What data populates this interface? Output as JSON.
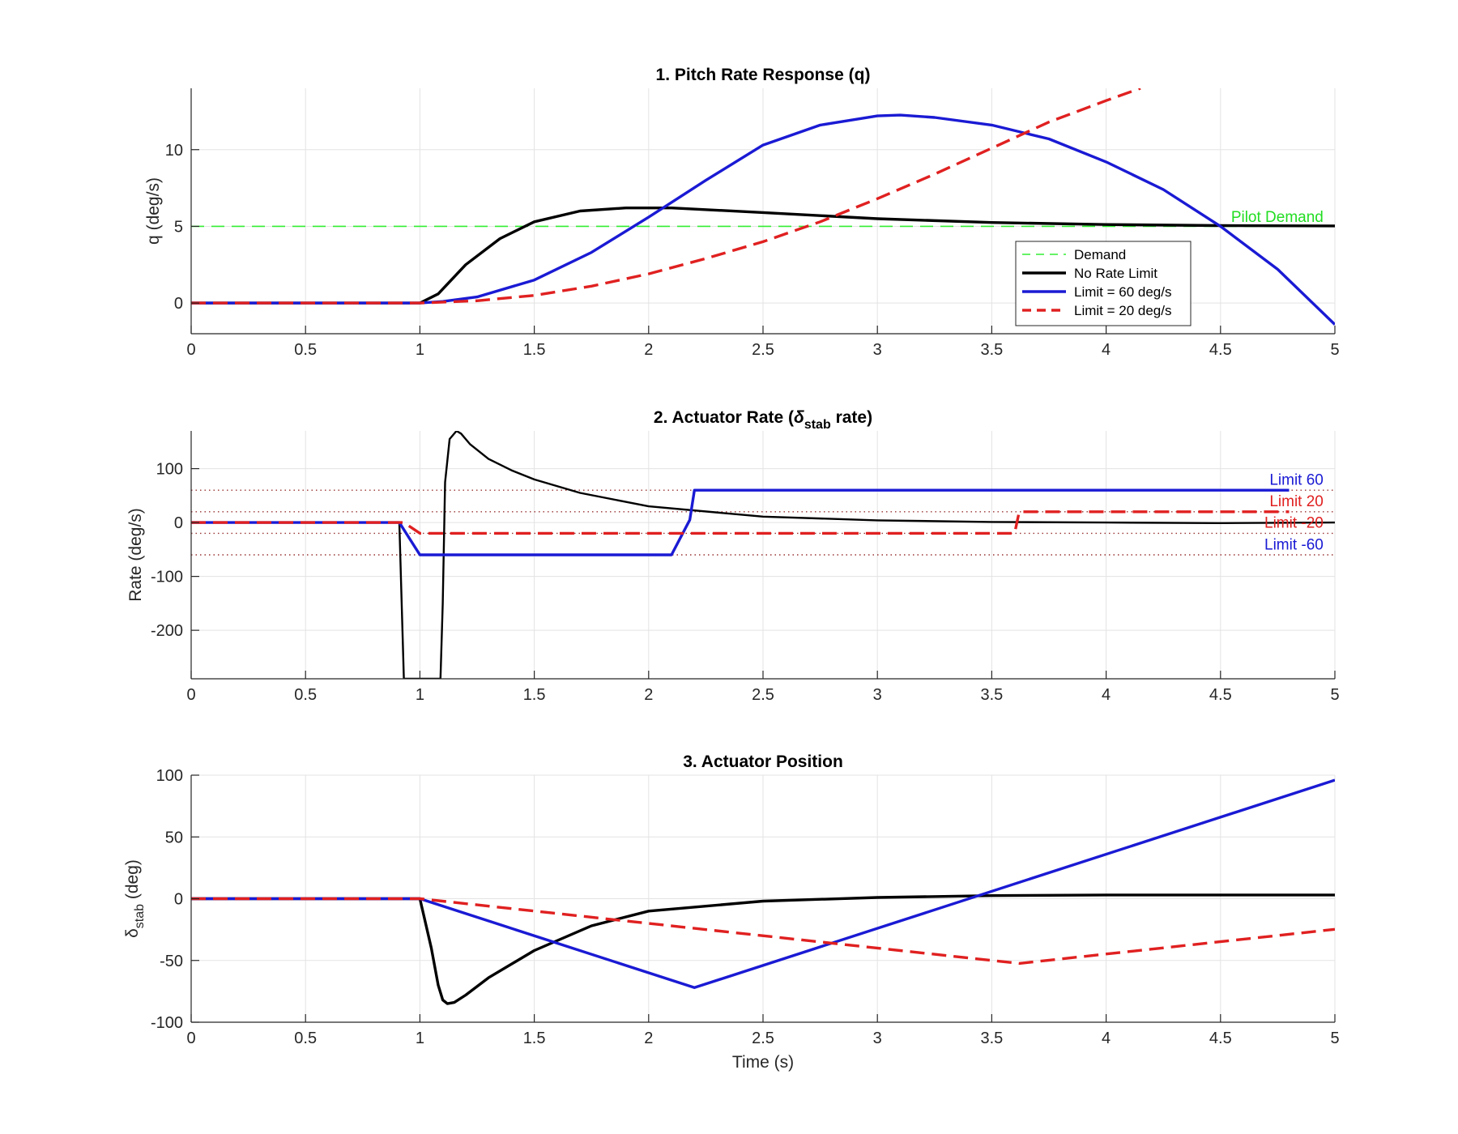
{
  "figure": {
    "background": "#ffffff"
  },
  "chart_data": [
    {
      "type": "line",
      "title": "1. Pitch Rate Response (q)",
      "xlabel": "",
      "ylabel": "q (deg/s)",
      "xlim": [
        0,
        5
      ],
      "ylim": [
        -2,
        14
      ],
      "xticks": [
        "0",
        "0.5",
        "1",
        "1.5",
        "2",
        "2.5",
        "3",
        "3.5",
        "4",
        "4.5",
        "5"
      ],
      "yticks": [
        "0",
        "5",
        "10"
      ],
      "grid": true,
      "legend": {
        "position": "inside-right",
        "entries": [
          "Demand",
          "No Rate Limit",
          "Limit = 60 deg/s",
          "Limit = 20 deg/s"
        ]
      },
      "annotations": [
        {
          "text": "Pilot Demand",
          "x": 4.95,
          "y": 5.3,
          "color": "#22dd22"
        }
      ],
      "series": [
        {
          "name": "Demand",
          "color": "#33ee33",
          "style": "dashed-thin",
          "x": [
            0,
            5
          ],
          "y": [
            5,
            5
          ]
        },
        {
          "name": "No Rate Limit",
          "color": "#000000",
          "style": "solid",
          "x": [
            0,
            1,
            1.08,
            1.2,
            1.35,
            1.5,
            1.7,
            1.9,
            2.1,
            2.5,
            3,
            3.5,
            4,
            4.5,
            5
          ],
          "y": [
            0,
            0,
            0.6,
            2.5,
            4.2,
            5.3,
            6.0,
            6.2,
            6.2,
            5.9,
            5.5,
            5.25,
            5.12,
            5.05,
            5.03
          ]
        },
        {
          "name": "Limit = 60 deg/s",
          "color": "#1a1ad4",
          "style": "solid",
          "x": [
            0,
            1,
            1.1,
            1.25,
            1.5,
            1.75,
            2,
            2.25,
            2.5,
            2.75,
            3,
            3.1,
            3.25,
            3.5,
            3.75,
            4,
            4.25,
            4.5,
            4.75,
            5
          ],
          "y": [
            0,
            0,
            0.1,
            0.4,
            1.5,
            3.3,
            5.6,
            8.0,
            10.3,
            11.6,
            12.2,
            12.25,
            12.1,
            11.6,
            10.7,
            9.2,
            7.4,
            5.0,
            2.2,
            -1.4
          ]
        },
        {
          "name": "Limit = 20 deg/s",
          "color": "#e02020",
          "style": "dashed",
          "x": [
            0,
            1,
            1.25,
            1.5,
            1.75,
            2,
            2.25,
            2.5,
            2.75,
            3,
            3.25,
            3.5,
            3.75,
            4,
            4.15
          ],
          "y": [
            0,
            0,
            0.15,
            0.5,
            1.1,
            1.9,
            2.9,
            4.0,
            5.3,
            6.8,
            8.4,
            10.1,
            11.8,
            13.2,
            14
          ]
        }
      ]
    },
    {
      "type": "line",
      "title": "2. Actuator Rate (",
      "title_symbol": "δ",
      "title_subscript": "stab",
      "title_suffix": " rate)",
      "xlabel": "",
      "ylabel": "Rate (deg/s)",
      "xlim": [
        0,
        5
      ],
      "ylim": [
        -290,
        170
      ],
      "xticks": [
        "0",
        "0.5",
        "1",
        "1.5",
        "2",
        "2.5",
        "3",
        "3.5",
        "4",
        "4.5",
        "5"
      ],
      "yticks": [
        "-200",
        "-100",
        "0",
        "100"
      ],
      "grid": true,
      "reference_lines": [
        {
          "y": 60,
          "color": "#993333",
          "style": "dotted"
        },
        {
          "y": 20,
          "color": "#993333",
          "style": "dotted"
        },
        {
          "y": -20,
          "color": "#993333",
          "style": "dotted"
        },
        {
          "y": -60,
          "color": "#993333",
          "style": "dotted"
        }
      ],
      "annotations": [
        {
          "text": "Limit 60",
          "x": 4.95,
          "y": 70,
          "color": "#1a1ad4"
        },
        {
          "text": "Limit 20",
          "x": 4.95,
          "y": 30,
          "color": "#e02020"
        },
        {
          "text": "Limit -20",
          "x": 4.95,
          "y": -10,
          "color": "#e02020"
        },
        {
          "text": "Limit -60",
          "x": 4.95,
          "y": -50,
          "color": "#1a1ad4"
        }
      ],
      "series": [
        {
          "name": "",
          "color": "#000000",
          "style": "solid-thin",
          "x": [
            0,
            0.91,
            0.93,
            1.09,
            1.1,
            1.11,
            1.13,
            1.16,
            1.18,
            1.22,
            1.3,
            1.4,
            1.5,
            1.7,
            2,
            2.5,
            3,
            3.5,
            4,
            4.5,
            5
          ],
          "y": [
            0,
            0,
            -290,
            -290,
            -150,
            75,
            155,
            170,
            165,
            145,
            118,
            97,
            80,
            55,
            30,
            11,
            4,
            1,
            0,
            -1,
            0
          ]
        },
        {
          "name": "",
          "color": "#1a1ad4",
          "style": "solid",
          "x": [
            0,
            0.91,
            1.0,
            2.1,
            2.18,
            2.2,
            4.8
          ],
          "y": [
            0,
            0,
            -60,
            -60,
            5,
            60,
            60
          ]
        },
        {
          "name": "",
          "color": "#e02020",
          "style": "dashed",
          "x": [
            0,
            0.93,
            1.0,
            3.6,
            3.62,
            4.8
          ],
          "y": [
            0,
            0,
            -20,
            -20,
            20,
            20
          ]
        }
      ]
    },
    {
      "type": "line",
      "title": "3. Actuator Position",
      "xlabel": "Time (s)",
      "ylabel": "(deg)",
      "ylabel_symbol": "δ",
      "ylabel_subscript": "stab",
      "xlim": [
        0,
        5
      ],
      "ylim": [
        -100,
        100
      ],
      "xticks": [
        "0",
        "0.5",
        "1",
        "1.5",
        "2",
        "2.5",
        "3",
        "3.5",
        "4",
        "4.5",
        "5"
      ],
      "yticks": [
        "-100",
        "-50",
        "0",
        "50",
        "100"
      ],
      "grid": true,
      "series": [
        {
          "name": "",
          "color": "#000000",
          "style": "solid",
          "x": [
            0,
            1,
            1.05,
            1.08,
            1.1,
            1.12,
            1.15,
            1.2,
            1.3,
            1.5,
            1.75,
            2,
            2.5,
            3,
            3.5,
            4,
            4.5,
            5
          ],
          "y": [
            0,
            0,
            -40,
            -70,
            -82,
            -85,
            -84,
            -78,
            -64,
            -42,
            -22,
            -10,
            -2,
            1,
            2.5,
            3,
            3,
            3
          ]
        },
        {
          "name": "",
          "color": "#1a1ad4",
          "style": "solid",
          "x": [
            0,
            1,
            2.2,
            5
          ],
          "y": [
            0,
            0,
            -72,
            96
          ]
        },
        {
          "name": "",
          "color": "#e02020",
          "style": "dashed",
          "x": [
            0,
            1,
            3.62,
            5
          ],
          "y": [
            0,
            0,
            -52.4,
            -24.8
          ]
        }
      ]
    }
  ]
}
